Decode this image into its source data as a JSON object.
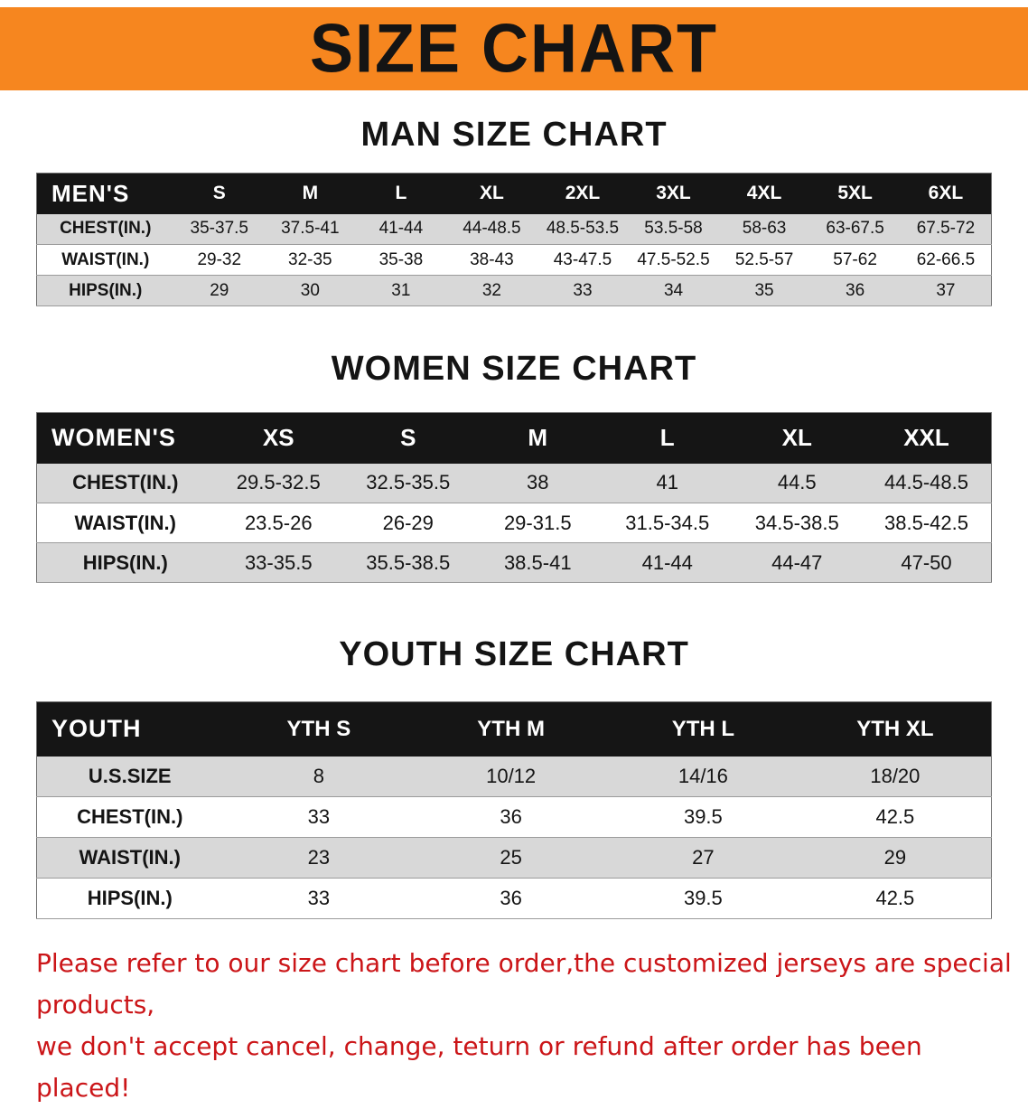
{
  "banner": {
    "title": "SIZE CHART"
  },
  "colors": {
    "banner_bg": "#f6861f",
    "table_header_bg": "#151515",
    "table_header_text": "#ffffff",
    "row_alt_gray": "#d8d8d8",
    "disclaimer_red": "#cb1518"
  },
  "chart_data": [
    {
      "type": "table",
      "title": "MAN SIZE CHART",
      "header": [
        "MEN'S",
        "S",
        "M",
        "L",
        "XL",
        "2XL",
        "3XL",
        "4XL",
        "5XL",
        "6XL"
      ],
      "rows": [
        [
          "CHEST(IN.)",
          "35-37.5",
          "37.5-41",
          "41-44",
          "44-48.5",
          "48.5-53.5",
          "53.5-58",
          "58-63",
          "63-67.5",
          "67.5-72"
        ],
        [
          "WAIST(IN.)",
          "29-32",
          "32-35",
          "35-38",
          "38-43",
          "43-47.5",
          "47.5-52.5",
          "52.5-57",
          "57-62",
          "62-66.5"
        ],
        [
          "HIPS(IN.)",
          "29",
          "30",
          "31",
          "32",
          "33",
          "34",
          "35",
          "36",
          "37"
        ]
      ]
    },
    {
      "type": "table",
      "title": "WOMEN SIZE CHART",
      "header": [
        "WOMEN'S",
        "XS",
        "S",
        "M",
        "L",
        "XL",
        "XXL"
      ],
      "rows": [
        [
          "CHEST(IN.)",
          "29.5-32.5",
          "32.5-35.5",
          "38",
          "41",
          "44.5",
          "44.5-48.5"
        ],
        [
          "WAIST(IN.)",
          "23.5-26",
          "26-29",
          "29-31.5",
          "31.5-34.5",
          "34.5-38.5",
          "38.5-42.5"
        ],
        [
          "HIPS(IN.)",
          "33-35.5",
          "35.5-38.5",
          "38.5-41",
          "41-44",
          "44-47",
          "47-50"
        ]
      ]
    },
    {
      "type": "table",
      "title": "YOUTH SIZE CHART",
      "header": [
        "YOUTH",
        "YTH S",
        "YTH M",
        "YTH L",
        "YTH XL"
      ],
      "rows": [
        [
          "U.S.SIZE",
          "8",
          "10/12",
          "14/16",
          "18/20"
        ],
        [
          "CHEST(IN.)",
          "33",
          "36",
          "39.5",
          "42.5"
        ],
        [
          "WAIST(IN.)",
          "23",
          "25",
          "27",
          "29"
        ],
        [
          "HIPS(IN.)",
          "33",
          "36",
          "39.5",
          "42.5"
        ]
      ]
    }
  ],
  "disclaimer": {
    "line1": "Please refer to our size chart before order,the customized jerseys are special products,",
    "line2": "we don't accept cancel, change, teturn or refund after order has been placed!"
  }
}
